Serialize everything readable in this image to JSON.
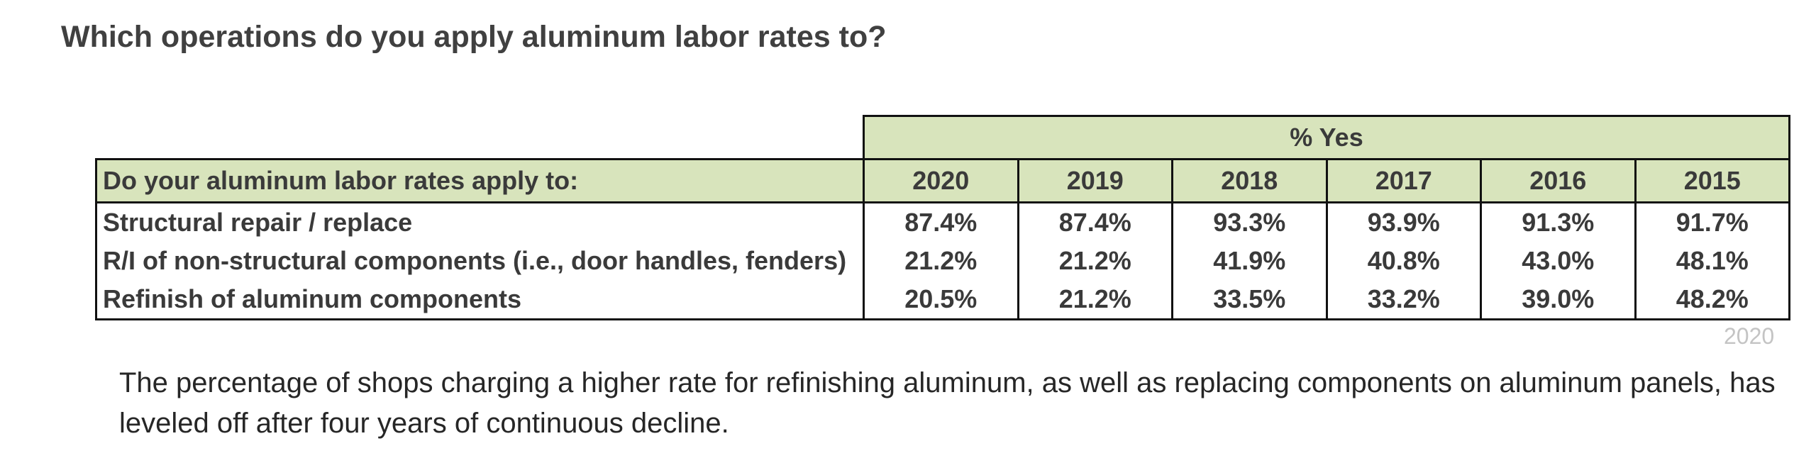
{
  "title": "Which operations do you apply aluminum labor rates to?",
  "table": {
    "group_header": "% Yes",
    "row_header": "Do your aluminum labor rates apply to:",
    "years": [
      "2020",
      "2019",
      "2018",
      "2017",
      "2016",
      "2015"
    ],
    "rows": [
      {
        "label": "Structural repair / replace",
        "values": [
          "87.4%",
          "87.4%",
          "93.3%",
          "93.9%",
          "91.3%",
          "91.7%"
        ]
      },
      {
        "label": "R/I of non-structural components (i.e., door handles, fenders)",
        "values": [
          "21.2%",
          "21.2%",
          "41.9%",
          "40.8%",
          "43.0%",
          "48.1%"
        ]
      },
      {
        "label": "Refinish of aluminum components",
        "values": [
          "20.5%",
          "21.2%",
          "33.5%",
          "33.2%",
          "39.0%",
          "48.2%"
        ]
      }
    ]
  },
  "year_tag": "2020",
  "summary": "The percentage of shops charging a higher rate for refinishing aluminum, as well as replacing components on aluminum panels, has leveled off after four years of continuous decline."
}
